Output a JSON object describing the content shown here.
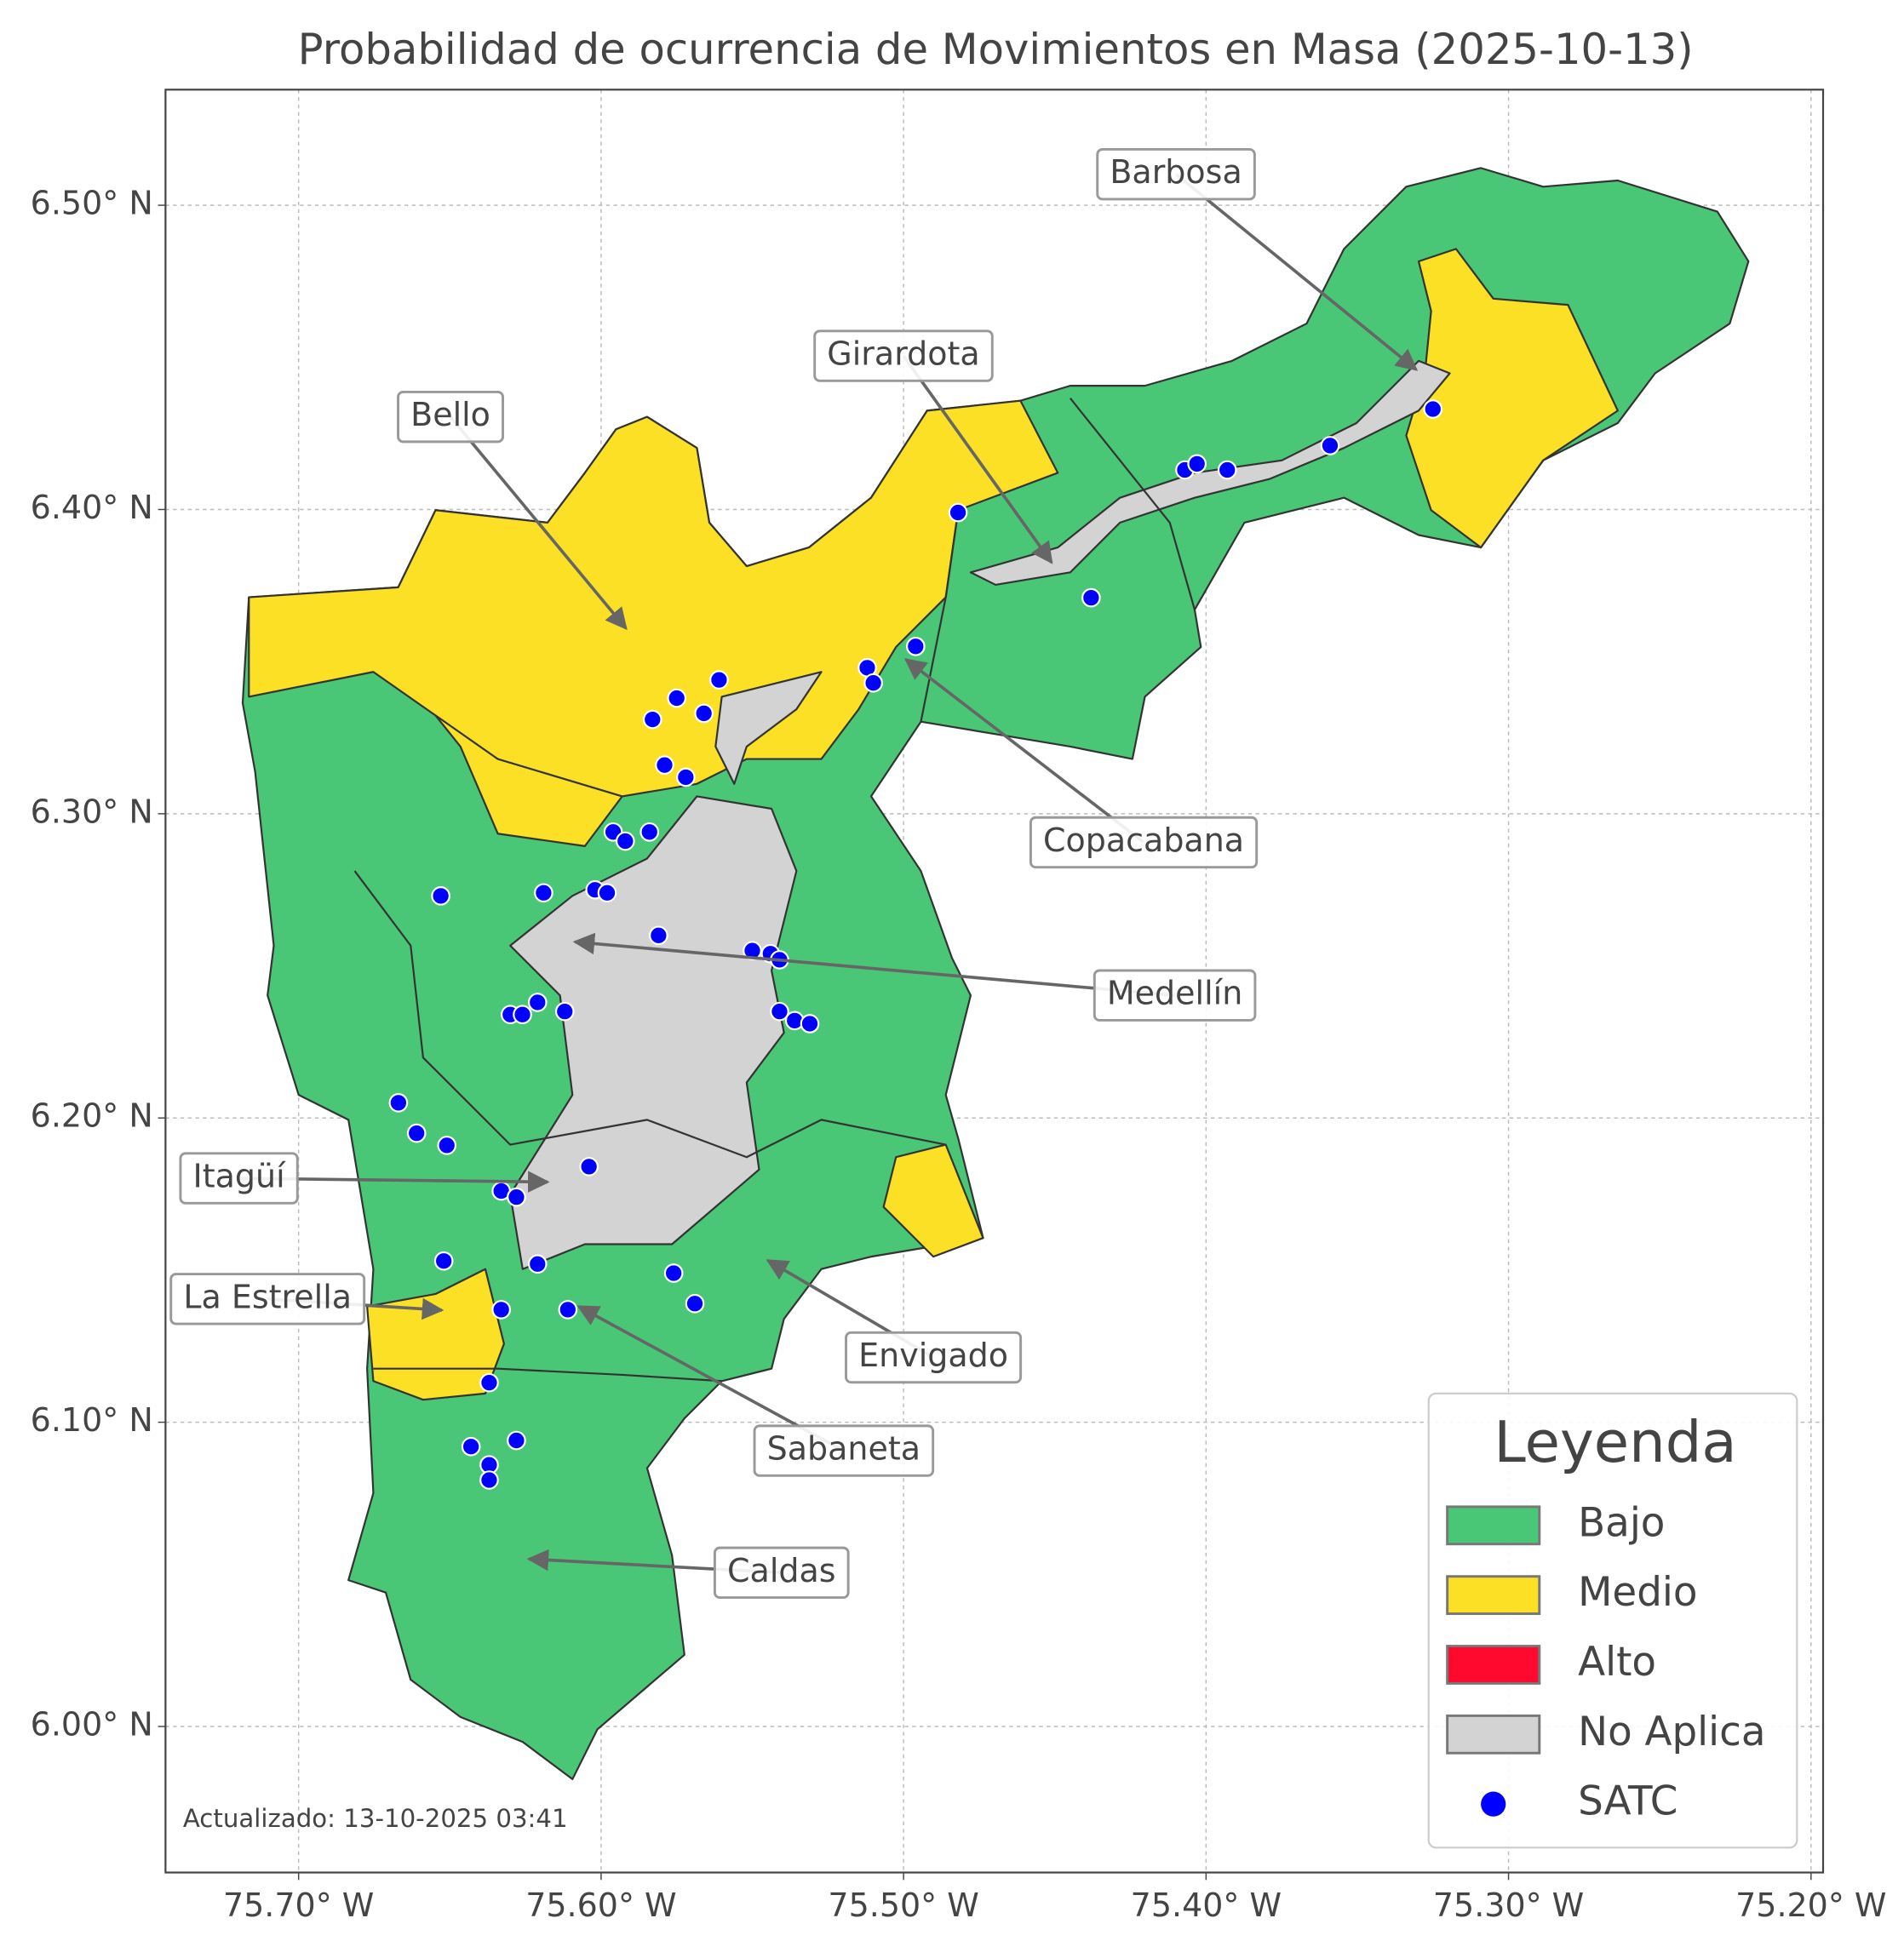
{
  "map": {
    "title": "Probabilidad de ocurrencia de Movimientos en Masa (2025-10-13)",
    "xlim": [
      -75.744,
      -75.196
    ],
    "ylim": [
      5.952,
      6.538
    ],
    "xticks": [
      {
        "value": -75.7,
        "label": "75.70° W"
      },
      {
        "value": -75.6,
        "label": "75.60° W"
      },
      {
        "value": -75.5,
        "label": "75.50° W"
      },
      {
        "value": -75.4,
        "label": "75.40° W"
      },
      {
        "value": -75.3,
        "label": "75.30° W"
      },
      {
        "value": -75.2,
        "label": "75.20° W"
      }
    ],
    "yticks": [
      {
        "value": 6.0,
        "label": "6.00° N"
      },
      {
        "value": 6.1,
        "label": "6.10° N"
      },
      {
        "value": 6.2,
        "label": "6.20° N"
      },
      {
        "value": 6.3,
        "label": "6.30° N"
      },
      {
        "value": 6.4,
        "label": "6.40° N"
      },
      {
        "value": 6.5,
        "label": "6.50° N"
      }
    ],
    "grid": true,
    "legend": {
      "title": "Leyenda",
      "items": [
        {
          "label": "Bajo",
          "color": "#4ac776"
        },
        {
          "label": "Medio",
          "color": "#fbe025"
        },
        {
          "label": "Alto",
          "color": "#ff0a2e"
        },
        {
          "label": "No Aplica",
          "color": "#d3d3d3"
        },
        {
          "label": "SATC",
          "color": "#0000ff"
        }
      ]
    },
    "places": [
      "Barbosa",
      "Girardota",
      "Bello",
      "Copacabana",
      "Medellín",
      "Itagüí",
      "La Estrella",
      "Envigado",
      "Sabaneta",
      "Caldas"
    ],
    "satc_points": {
      "color": "#0000ff",
      "lon": [
        -75.482,
        -75.407,
        -75.403,
        -75.393,
        -75.359,
        -75.325,
        -75.438,
        -75.496,
        -75.512,
        -75.51,
        -75.561,
        -75.575,
        -75.583,
        -75.566,
        -75.579,
        -75.572,
        -75.596,
        -75.584,
        -75.592,
        -75.653,
        -75.619,
        -75.602,
        -75.598,
        -75.581,
        -75.55,
        -75.544,
        -75.541,
        -75.541,
        -75.536,
        -75.531,
        -75.621,
        -75.612,
        -75.63,
        -75.626,
        -75.667,
        -75.661,
        -75.651,
        -75.604,
        -75.633,
        -75.628,
        -75.652,
        -75.621,
        -75.576,
        -75.611,
        -75.633,
        -75.569,
        -75.637,
        -75.643,
        -75.628,
        -75.637,
        -75.637
      ],
      "lat": [
        6.399,
        6.413,
        6.415,
        6.413,
        6.421,
        6.433,
        6.371,
        6.355,
        6.348,
        6.343,
        6.344,
        6.338,
        6.331,
        6.333,
        6.316,
        6.312,
        6.294,
        6.294,
        6.291,
        6.273,
        6.274,
        6.275,
        6.274,
        6.26,
        6.255,
        6.254,
        6.252,
        6.235,
        6.232,
        6.231,
        6.238,
        6.235,
        6.234,
        6.234,
        6.205,
        6.195,
        6.191,
        6.184,
        6.176,
        6.174,
        6.153,
        6.152,
        6.149,
        6.137,
        6.137,
        6.139,
        6.113,
        6.092,
        6.094,
        6.086,
        6.081
      ]
    },
    "footer": "Actualizado: 13-10-2025 03:41"
  }
}
